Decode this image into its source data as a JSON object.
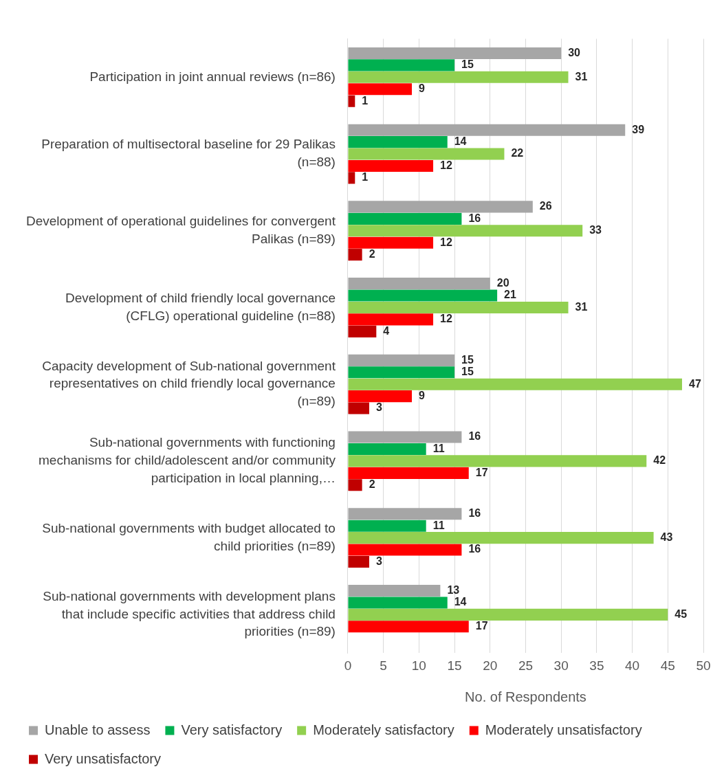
{
  "chart_data": {
    "type": "bar",
    "orientation": "horizontal",
    "xlabel": "No. of Respondents",
    "categories": [
      "Participation in joint annual reviews (n=86)",
      "Preparation of multisectoral baseline for 29 Palikas (n=88)",
      "Development of operational guidelines for convergent Palikas (n=89)",
      "Development of child friendly local governance (CFLG) operational guideline (n=88)",
      "Capacity development of Sub-national government representatives on child friendly local governance (n=89)",
      "Sub-national governments with functioning mechanisms for child/adolescent and/or community participation in local planning,…",
      "Sub-national governments with budget allocated to child priorities (n=89)",
      "Sub-national governments with development plans that include specific activities that address child priorities (n=89)"
    ],
    "series": [
      {
        "name": "Unable to assess",
        "color": "#a6a6a6",
        "values": [
          30,
          39,
          26,
          20,
          15,
          16,
          16,
          13
        ]
      },
      {
        "name": "Very satisfactory",
        "color": "#00b050",
        "values": [
          15,
          14,
          16,
          21,
          15,
          11,
          11,
          14
        ]
      },
      {
        "name": "Moderately satisfactory",
        "color": "#92d050",
        "values": [
          31,
          22,
          33,
          31,
          47,
          42,
          43,
          45
        ]
      },
      {
        "name": "Moderately unsatisfactory",
        "color": "#ff0000",
        "values": [
          9,
          12,
          12,
          12,
          9,
          17,
          16,
          17
        ]
      },
      {
        "name": "Very unsatisfactory",
        "color": "#c00000",
        "values": [
          1,
          1,
          2,
          4,
          3,
          2,
          3,
          null
        ]
      }
    ],
    "xlim": [
      0,
      50
    ],
    "xticks": [
      0,
      5,
      10,
      15,
      20,
      25,
      30,
      35,
      40,
      45,
      50
    ],
    "grid": "x",
    "legend": "bottom",
    "data_labels": true
  }
}
